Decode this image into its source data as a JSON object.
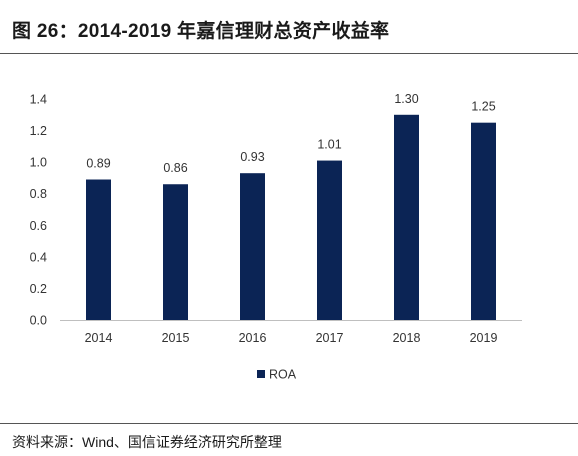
{
  "title": "图 26：2014-2019 年嘉信理财总资产收益率",
  "source": "资料来源：Wind、国信证券经济研究所整理",
  "colors": {
    "bar": "#0b2455",
    "text": "#333333"
  },
  "chart_data": {
    "type": "bar",
    "categories": [
      "2014",
      "2015",
      "2016",
      "2017",
      "2018",
      "2019"
    ],
    "series": [
      {
        "name": "ROA",
        "values": [
          0.89,
          0.86,
          0.93,
          1.01,
          1.3,
          1.25
        ],
        "labels": [
          "0.89",
          "0.86",
          "0.93",
          "1.01",
          "1.30",
          "1.25"
        ]
      }
    ],
    "yticks": [
      "0.0",
      "0.2",
      "0.4",
      "0.6",
      "0.8",
      "1.0",
      "1.2",
      "1.4"
    ],
    "ylim": [
      0,
      1.4
    ],
    "grid": false,
    "legend": "bottom-center"
  }
}
